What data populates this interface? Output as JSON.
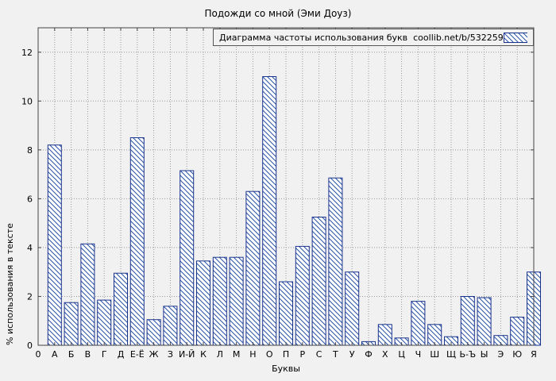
{
  "header": {
    "title": "Подожди со мной (Эми Доуз)"
  },
  "legend": {
    "label": "Диаграмма частоты использования букв  coollib.net/b/532259"
  },
  "axes": {
    "ylabel": "% использования в тексте",
    "xlabel": "Буквы",
    "origin_label": "0"
  },
  "colors": {
    "background": "#f1f1f1",
    "plot_border": "#444444",
    "grid": "#9a9a9a",
    "bar_border": "#18338c",
    "bar_hatch": "#2a52a8",
    "bar_fill": "#ffffff",
    "text": "#000000"
  },
  "chart_data": {
    "type": "bar",
    "title": "Подожди со мной (Эми Доуз)",
    "xlabel": "Буквы",
    "ylabel": "% использования в тексте",
    "legend_entry": "Диаграмма частоты использования букв  coollib.net/b/532259",
    "legend_position": "top",
    "grid": true,
    "categories": [
      "А",
      "Б",
      "В",
      "Г",
      "Д",
      "Е-Ё",
      "Ж",
      "З",
      "И-Й",
      "К",
      "Л",
      "М",
      "Н",
      "О",
      "П",
      "Р",
      "С",
      "Т",
      "У",
      "Ф",
      "Х",
      "Ц",
      "Ч",
      "Ш",
      "Щ",
      "Ь-Ъ",
      "Ы",
      "Э",
      "Ю",
      "Я"
    ],
    "values": [
      8.2,
      1.75,
      4.15,
      1.85,
      2.95,
      8.5,
      1.05,
      1.6,
      7.15,
      3.45,
      3.6,
      3.6,
      6.3,
      11.0,
      2.6,
      4.05,
      5.25,
      6.85,
      3.0,
      0.15,
      0.85,
      0.3,
      1.8,
      0.85,
      0.35,
      2.0,
      1.95,
      0.4,
      1.15,
      3.0
    ],
    "yticks": [
      0,
      2,
      4,
      6,
      8,
      10,
      12
    ],
    "ylim": [
      0,
      13
    ]
  }
}
